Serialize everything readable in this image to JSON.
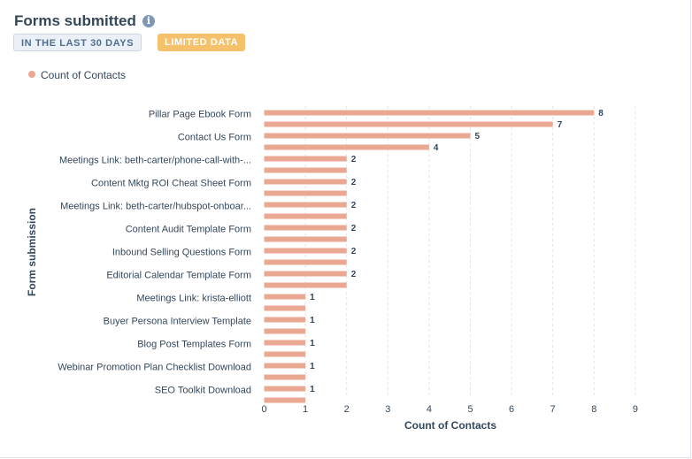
{
  "header": {
    "title": "Forms submitted",
    "info_icon": "info-icon",
    "badges": {
      "range": "IN THE LAST 30 DAYS",
      "limited": "LIMITED DATA"
    }
  },
  "colors": {
    "bar": "#eaa893",
    "limited_badge": "#f5c26b",
    "range_badge": "#eaf0f6"
  },
  "chart_data": {
    "type": "bar",
    "orientation": "horizontal",
    "legend": [
      "Count of Contacts"
    ],
    "legend_position": "top-left",
    "xlabel": "Count of Contacts",
    "ylabel": "Form submission",
    "xlim": [
      0,
      9
    ],
    "xticks": [
      0,
      1,
      2,
      3,
      4,
      5,
      6,
      7,
      8,
      9
    ],
    "grid": true,
    "category_labels": [
      "Pillar Page Ebook Form",
      "Contact Us Form",
      "Meetings Link: beth-carter/phone-call-with-...",
      "Content Mktg ROI Cheat Sheet Form",
      "Meetings Link: beth-carter/hubspot-onboar...",
      "Content Audit Template Form",
      "Inbound Selling Questions Form",
      "Editorial Calendar Template Form",
      "Meetings Link: krista-elliott",
      "Buyer Persona Interview Template",
      "Blog Post Templates Form",
      "Webinar Promotion Plan Checklist Download",
      "SEO Toolkit Download"
    ],
    "series": [
      {
        "name": "Count of Contacts",
        "values": [
          8,
          7,
          5,
          4,
          2,
          2,
          2,
          2,
          2,
          2,
          2,
          2,
          2,
          2,
          2,
          2,
          1,
          1,
          1,
          1,
          1,
          1,
          1,
          1,
          1,
          1
        ],
        "value_labels": [
          "8",
          "7",
          "5",
          "4",
          "2",
          "",
          "2",
          "",
          "2",
          "",
          "2",
          "",
          "2",
          "",
          "2",
          "",
          "1",
          "",
          "1",
          "",
          "1",
          "",
          "1",
          "",
          "1",
          ""
        ]
      }
    ]
  }
}
